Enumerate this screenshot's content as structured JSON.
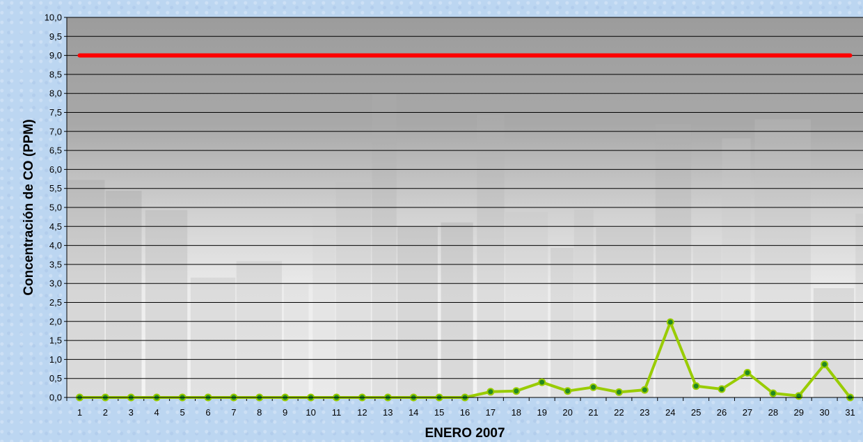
{
  "chart_data": {
    "type": "line",
    "xlabel": "ENERO 2007",
    "ylabel": "Concentración de CO (PPM)",
    "ylim": [
      0,
      10
    ],
    "ytick_step": 0.5,
    "grid": "horizontal",
    "categories": [
      "1",
      "2",
      "3",
      "4",
      "5",
      "6",
      "7",
      "8",
      "9",
      "10",
      "11",
      "12",
      "13",
      "14",
      "15",
      "16",
      "17",
      "18",
      "19",
      "20",
      "21",
      "22",
      "23",
      "24",
      "25",
      "26",
      "27",
      "28",
      "29",
      "30",
      "31"
    ],
    "series": [
      {
        "values": [
          0,
          0,
          0,
          0,
          0,
          0,
          0,
          0,
          0,
          0,
          0,
          0,
          0,
          0,
          0,
          0,
          0.15,
          0.17,
          0.4,
          0.17,
          0.27,
          0.14,
          0.2,
          1.98,
          0.3,
          0.22,
          0.65,
          0.11,
          0.04,
          0.87,
          0
        ],
        "color": "#99cc00",
        "marker_color": "#228822"
      },
      {
        "values": [
          9,
          9,
          9,
          9,
          9,
          9,
          9,
          9,
          9,
          9,
          9,
          9,
          9,
          9,
          9,
          9,
          9,
          9,
          9,
          9,
          9,
          9,
          9,
          9,
          9,
          9,
          9,
          9,
          9,
          9,
          9
        ],
        "color": "#ff0000"
      }
    ]
  }
}
